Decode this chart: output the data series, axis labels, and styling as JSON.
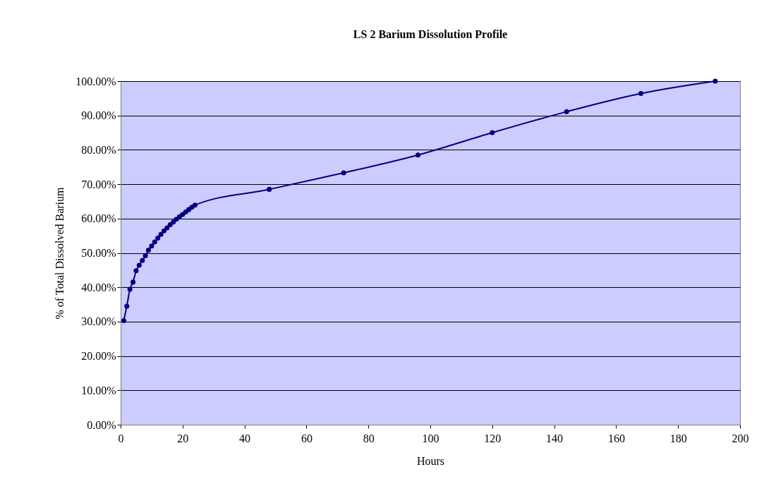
{
  "chart_data": {
    "type": "line",
    "title": "LS 2 Barium Dissolution Profile",
    "xlabel": "Hours",
    "ylabel": "% of Total Dissolved Barium",
    "x": [
      1,
      2,
      3,
      4,
      5,
      6,
      7,
      8,
      9,
      10,
      11,
      12,
      13,
      14,
      15,
      16,
      17,
      18,
      19,
      20,
      21,
      22,
      23,
      24,
      48,
      72,
      96,
      120,
      144,
      168,
      192
    ],
    "series": [
      {
        "color": "#000080",
        "values": [
          30.3,
          34.5,
          39.4,
          41.5,
          44.8,
          46.4,
          47.8,
          49.2,
          50.8,
          52.0,
          53.2,
          54.3,
          55.4,
          56.4,
          57.3,
          58.2,
          59.0,
          59.8,
          60.5,
          61.2,
          61.9,
          62.6,
          63.3,
          63.9,
          68.5,
          73.3,
          78.5,
          85.0,
          91.1,
          96.4,
          100.0
        ]
      }
    ],
    "xlim": [
      0,
      200
    ],
    "xticks": [
      0,
      20,
      40,
      60,
      80,
      100,
      120,
      140,
      160,
      180,
      200
    ],
    "ylim": [
      0,
      100
    ],
    "yticks": [
      {
        "value": 0,
        "label": "0.00%"
      },
      {
        "value": 10,
        "label": "10.00%"
      },
      {
        "value": 20,
        "label": "20.00%"
      },
      {
        "value": 30,
        "label": "30.00%"
      },
      {
        "value": 40,
        "label": "40.00%"
      },
      {
        "value": 50,
        "label": "50.00%"
      },
      {
        "value": 60,
        "label": "60.00%"
      },
      {
        "value": 70,
        "label": "70.00%"
      },
      {
        "value": 80,
        "label": "80.00%"
      },
      {
        "value": 90,
        "label": "90.00%"
      },
      {
        "value": 100,
        "label": "100.00%"
      }
    ],
    "grid": "y",
    "marker": "circle",
    "line_style": "solid"
  }
}
